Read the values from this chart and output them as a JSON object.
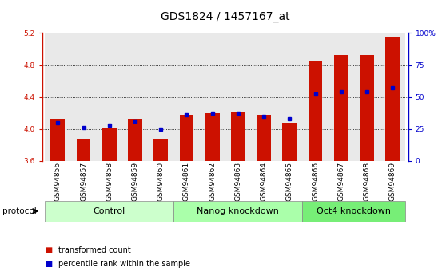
{
  "title": "GDS1824 / 1457167_at",
  "samples": [
    "GSM94856",
    "GSM94857",
    "GSM94858",
    "GSM94859",
    "GSM94860",
    "GSM94861",
    "GSM94862",
    "GSM94863",
    "GSM94864",
    "GSM94865",
    "GSM94866",
    "GSM94867",
    "GSM94868",
    "GSM94869"
  ],
  "transformed_count": [
    4.13,
    3.87,
    4.02,
    4.13,
    3.88,
    4.18,
    4.2,
    4.22,
    4.18,
    4.08,
    4.84,
    4.92,
    4.92,
    5.14
  ],
  "percentile_rank": [
    30,
    26,
    28,
    31,
    25,
    36,
    37,
    37,
    35,
    33,
    52,
    54,
    54,
    57
  ],
  "ymin": 3.6,
  "ymax": 5.2,
  "yticks": [
    3.6,
    4.0,
    4.4,
    4.8,
    5.2
  ],
  "right_yticks": [
    0,
    25,
    50,
    75,
    100
  ],
  "right_yticklabels": [
    "0",
    "25",
    "50",
    "75",
    "100%"
  ],
  "bar_color": "#cc1100",
  "dot_color": "#0000cc",
  "groups": [
    {
      "label": "Control",
      "start": 0,
      "end": 5,
      "color": "#ccffcc"
    },
    {
      "label": "Nanog knockdown",
      "start": 5,
      "end": 10,
      "color": "#aaffaa"
    },
    {
      "label": "Oct4 knockdown",
      "start": 10,
      "end": 14,
      "color": "#77ee77"
    }
  ],
  "legend_items": [
    {
      "label": "transformed count",
      "color": "#cc1100"
    },
    {
      "label": "percentile rank within the sample",
      "color": "#0000cc"
    }
  ],
  "protocol_label": "protocol",
  "bar_width": 0.55,
  "background_color": "#ffffff",
  "title_fontsize": 10,
  "tick_fontsize": 6.5,
  "group_fontsize": 8
}
